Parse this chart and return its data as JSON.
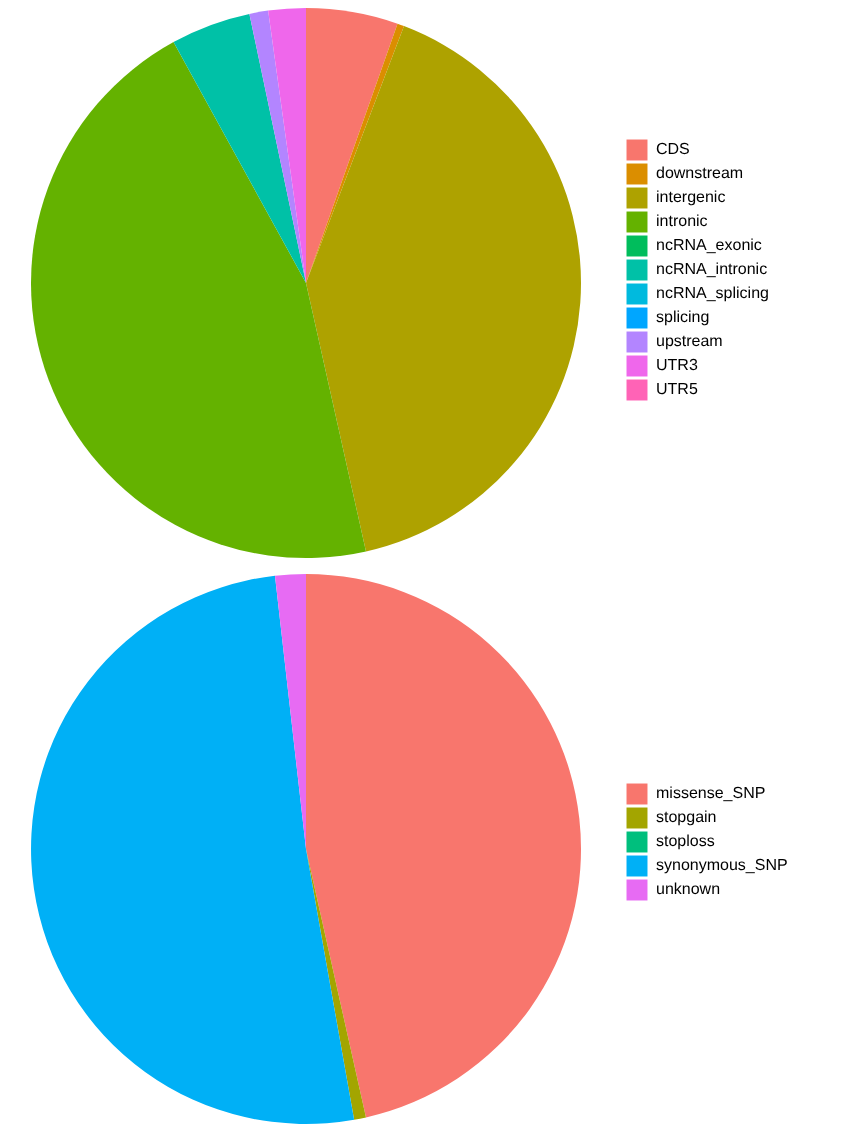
{
  "chart_data": [
    {
      "type": "pie",
      "categories": [
        "CDS",
        "downstream",
        "intergenic",
        "intronic",
        "ncRNA_exonic",
        "ncRNA_intronic",
        "ncRNA_splicing",
        "splicing",
        "upstream",
        "UTR3",
        "UTR5"
      ],
      "values": [
        5.4,
        0.4,
        40.7,
        45.5,
        0,
        4.7,
        0,
        0,
        1.1,
        2.2,
        0
      ],
      "colors": [
        "#f8766d",
        "#db8e00",
        "#aea200",
        "#64b200",
        "#00bd5c",
        "#00c1a7",
        "#00bade",
        "#00a6ff",
        "#b385ff",
        "#ef67eb",
        "#ff63b6"
      ],
      "legend": "right"
    },
    {
      "type": "pie",
      "categories": [
        "missense_SNP",
        "stopgain",
        "stoploss",
        "synonymous_SNP",
        "unknown"
      ],
      "values": [
        46.5,
        0.7,
        0,
        51.0,
        1.8
      ],
      "colors": [
        "#f8766d",
        "#a3a500",
        "#00bf7d",
        "#00b0f6",
        "#e76bf3"
      ],
      "legend": "right"
    }
  ]
}
